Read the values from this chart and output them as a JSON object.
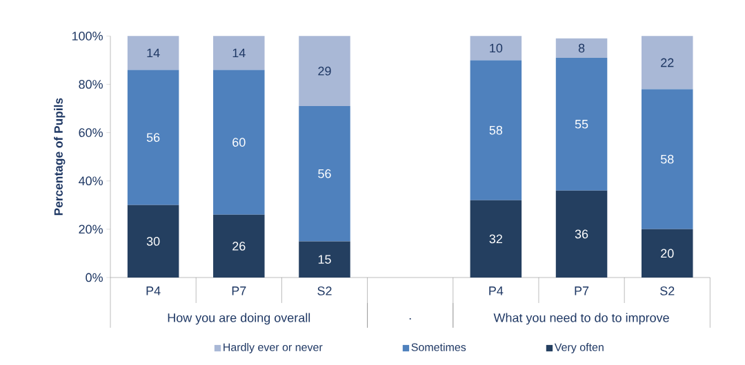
{
  "chart_data": {
    "type": "bar",
    "stacked": true,
    "categories": [
      "P4",
      "P7",
      "S2",
      null,
      "P4",
      "P7",
      "S2"
    ],
    "annotations": [
      "How you are doing overall",
      ".",
      "What you need to do to improve"
    ],
    "ylabel": "Percentage of Pupils",
    "ylim": [
      0,
      100
    ],
    "yticks": [
      {
        "value": 0,
        "label": "0%"
      },
      {
        "value": 20,
        "label": "20%"
      },
      {
        "value": 40,
        "label": "40%"
      },
      {
        "value": 60,
        "label": "60%"
      },
      {
        "value": 80,
        "label": "80%"
      },
      {
        "value": 100,
        "label": "100%"
      }
    ],
    "series": [
      {
        "name": "Very often",
        "color": "#243f60",
        "values": [
          30,
          26,
          15,
          null,
          32,
          36,
          20
        ]
      },
      {
        "name": "Sometimes",
        "color": "#4f81bd",
        "values": [
          56,
          60,
          56,
          null,
          58,
          55,
          58
        ]
      },
      {
        "name": "Hardly ever or never",
        "color": "#a9b8d6",
        "values": [
          14,
          14,
          29,
          null,
          10,
          8,
          22
        ]
      }
    ],
    "data_labels": true,
    "legend": "bottom",
    "grid": false
  }
}
